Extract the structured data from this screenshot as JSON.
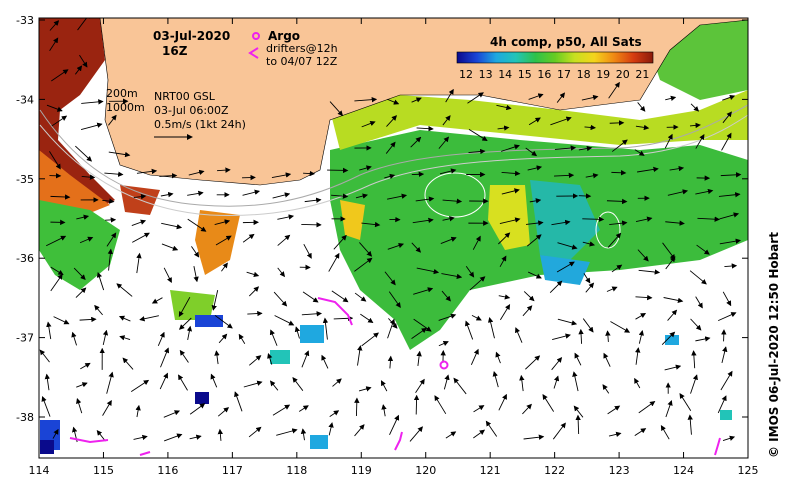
{
  "map": {
    "date": "03-Jul-2020",
    "time": "16Z",
    "legend_argo": "Argo",
    "legend_drifters": "drifters@12h",
    "legend_drifters_to": "to 04/07 12Z",
    "isobath_200": "200m",
    "isobath_1000": "1000m",
    "current_source": "NRT00 GSL",
    "current_time": "03-Jul 06:00Z",
    "current_scale": "0.5m/s (1kt 24h)",
    "colorbar_title": "4h comp, p50, All Sats",
    "colorbar_ticks": [
      "12",
      "13",
      "14",
      "15",
      "16",
      "17",
      "18",
      "19",
      "20",
      "21"
    ],
    "credit": "© IMOS 06-Jul-2020 12:50 Hobart"
  },
  "axes": {
    "x_ticks": [
      "114",
      "115",
      "116",
      "117",
      "118",
      "119",
      "120",
      "121",
      "122",
      "123",
      "124",
      "125"
    ],
    "y_ticks": [
      "-33",
      "-34",
      "-35",
      "-36",
      "-37",
      "-38"
    ]
  },
  "colors": {
    "land": "#f9c597",
    "argo": "#ee22ee",
    "drifter": "#ee22ee",
    "colorbar": [
      "#0a0a8c",
      "#1a44d6",
      "#1fa8e0",
      "#22c4b8",
      "#2ec24a",
      "#66cc22",
      "#c8e020",
      "#f4d41c",
      "#f08a14",
      "#d63c10",
      "#8a1a0a"
    ]
  }
}
